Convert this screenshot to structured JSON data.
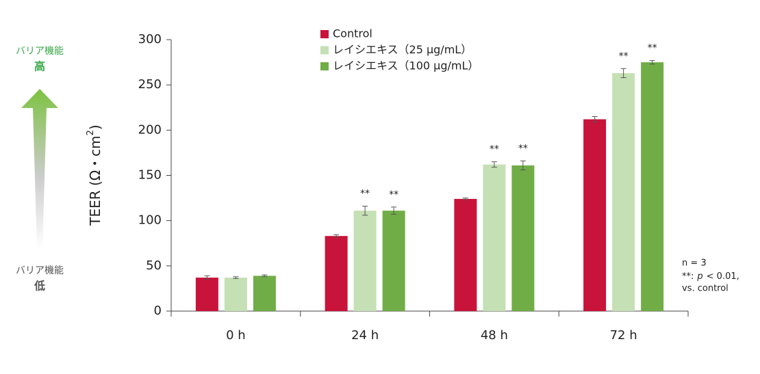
{
  "chart_data": {
    "type": "bar",
    "y_label": {
      "text": "TEER (Ω・cm",
      "sup": "2",
      "end": ")"
    },
    "categories": [
      "0 h",
      "24 h",
      "48 h",
      "72 h"
    ],
    "series": [
      {
        "name": "Control",
        "color": "#c8133a",
        "values": [
          37,
          83,
          124,
          212
        ],
        "errors": [
          2,
          1.5,
          1,
          3
        ],
        "significance": [
          null,
          null,
          null,
          null
        ]
      },
      {
        "name": "レイシエキス（25 μg/mL）",
        "color": "#c5e0b4",
        "values": [
          37,
          111,
          162,
          263
        ],
        "errors": [
          1,
          5,
          3,
          5
        ],
        "significance": [
          null,
          "**",
          "**",
          "**"
        ]
      },
      {
        "name": "レイシエキス（100 μg/mL）",
        "color": "#70ad47",
        "values": [
          39,
          111,
          161,
          275
        ],
        "errors": [
          1,
          4,
          5,
          2
        ],
        "significance": [
          null,
          "**",
          "**",
          "**"
        ]
      }
    ],
    "ylim": [
      0,
      300
    ],
    "yticks": [
      0,
      50,
      100,
      150,
      200,
      250,
      300
    ],
    "grid": false,
    "side_scale": {
      "top": "バリア機能",
      "top_strong": "高",
      "bottom": "バリア機能",
      "bottom_strong": "低"
    },
    "notes": {
      "n": "n = 3",
      "sig_prefix": "**:",
      "sig_var": "p",
      "sig_rest": "< 0.01,",
      "last": "vs. control"
    }
  }
}
